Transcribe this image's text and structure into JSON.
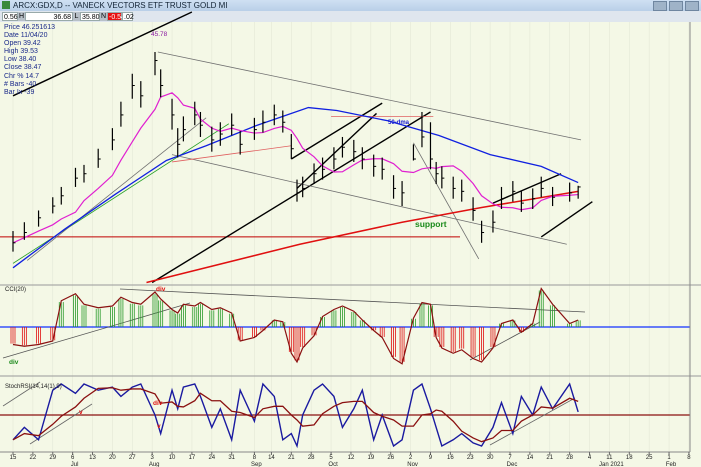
{
  "window": {
    "title": "ARCX:GDX,D -- VANECK VECTORS ETF TRUST GOLD MI"
  },
  "toolbar": {
    "open_partial": "0.56",
    "h_label": "H",
    "high": "36.68",
    "l_label": "L",
    "low": "35.80",
    "n_label": "N",
    "net": "-0.54",
    "pct_partial": ".02",
    "net_color": "#e81010"
  },
  "info": {
    "price": "Price  46.251613",
    "date": "Date   11/04/20",
    "open": "Open   39.42",
    "high": "High   39.53",
    "low": "Low    38.40",
    "close": "Close  38.47",
    "chg": "Chr %  14.7",
    "bars": "# Bars -40",
    "barix": "Bar Ix  -39"
  },
  "colors": {
    "background": "#f4f8e6",
    "bars": "#000000",
    "ma20": "#e020d0",
    "ma50": "#1020e0",
    "ma200": "#e01010",
    "support": "#c00000",
    "cci_pos": "#2a9a2a",
    "cci_neg": "#e01010",
    "cci_line": "#8a1010",
    "stoch_k": "#1a1aa0",
    "stoch_d": "#8a1010",
    "zero_line": "#1030ff"
  },
  "annotations": {
    "peak_label": "45.78",
    "ma50_label": "50-dma",
    "support_label": "support",
    "cci_div_red": "div",
    "cci_div_green": "div",
    "stoch_div": "div",
    "stoch_v1": "v",
    "stoch_v2": "v"
  },
  "chart_data": [
    {
      "type": "ohlc",
      "panel": "price",
      "columns": [
        "date",
        "high",
        "low",
        "close"
      ],
      "bars": [
        [
          "2020-06-15",
          33.6,
          32.2,
          32.8
        ],
        [
          "2020-06-19",
          34.2,
          33.0,
          33.5
        ],
        [
          "2020-06-24",
          35.0,
          33.9,
          34.5
        ],
        [
          "2020-06-29",
          35.9,
          34.8,
          35.3
        ],
        [
          "2020-07-02",
          36.6,
          35.4,
          36.0
        ],
        [
          "2020-07-07",
          37.9,
          36.6,
          37.2
        ],
        [
          "2020-07-10",
          38.1,
          36.9,
          37.5
        ],
        [
          "2020-07-15",
          39.2,
          37.9,
          38.5
        ],
        [
          "2020-07-20",
          40.6,
          39.1,
          39.8
        ],
        [
          "2020-07-23",
          42.4,
          40.7,
          41.5
        ],
        [
          "2020-07-27",
          44.3,
          42.6,
          43.5
        ],
        [
          "2020-07-30",
          43.8,
          42.0,
          42.8
        ],
        [
          "2020-08-04",
          45.78,
          44.2,
          45.2
        ],
        [
          "2020-08-06",
          44.6,
          42.7,
          43.5
        ],
        [
          "2020-08-10",
          42.6,
          40.5,
          41.5
        ],
        [
          "2020-08-12",
          40.6,
          38.6,
          39.5
        ],
        [
          "2020-08-14",
          41.4,
          39.7,
          40.5
        ],
        [
          "2020-08-18",
          42.4,
          40.8,
          41.5
        ],
        [
          "2020-08-20",
          41.7,
          40.0,
          40.8
        ],
        [
          "2020-08-24",
          40.7,
          39.0,
          39.8
        ],
        [
          "2020-08-27",
          41.0,
          39.4,
          40.2
        ],
        [
          "2020-08-31",
          41.6,
          40.1,
          40.8
        ],
        [
          "2020-09-03",
          40.4,
          38.8,
          39.5
        ],
        [
          "2020-09-08",
          41.3,
          39.8,
          40.5
        ],
        [
          "2020-09-11",
          41.8,
          40.3,
          41.0
        ],
        [
          "2020-09-15",
          42.2,
          40.8,
          41.5
        ],
        [
          "2020-09-18",
          41.8,
          40.3,
          41.0
        ],
        [
          "2020-09-21",
          40.2,
          38.5,
          39.2
        ],
        [
          "2020-09-23",
          37.1,
          35.6,
          36.2
        ],
        [
          "2020-09-25",
          37.3,
          35.9,
          36.5
        ],
        [
          "2020-09-29",
          38.2,
          36.8,
          37.5
        ],
        [
          "2020-10-02",
          38.6,
          37.1,
          37.8
        ],
        [
          "2020-10-06",
          39.3,
          37.8,
          38.5
        ],
        [
          "2020-10-09",
          40.0,
          38.6,
          39.3
        ],
        [
          "2020-10-13",
          39.8,
          38.3,
          39.0
        ],
        [
          "2020-10-16",
          39.3,
          37.8,
          38.5
        ],
        [
          "2020-10-20",
          38.8,
          37.3,
          38.0
        ],
        [
          "2020-10-23",
          38.6,
          37.1,
          37.8
        ],
        [
          "2020-10-27",
          37.4,
          35.8,
          36.5
        ],
        [
          "2020-10-30",
          37.0,
          35.3,
          36.2
        ],
        [
          "2020-11-03",
          39.5,
          38.4,
          38.5
        ],
        [
          "2020-11-06",
          41.7,
          39.3,
          40.0
        ],
        [
          "2020-11-09",
          41.0,
          37.8,
          38.5
        ],
        [
          "2020-11-11",
          38.3,
          36.8,
          37.5
        ],
        [
          "2020-11-13",
          38.0,
          36.5,
          37.2
        ],
        [
          "2020-11-17",
          37.3,
          35.8,
          36.5
        ],
        [
          "2020-11-20",
          37.1,
          35.6,
          36.3
        ],
        [
          "2020-11-24",
          35.9,
          34.3,
          35.0
        ],
        [
          "2020-11-27",
          34.3,
          32.8,
          33.5
        ],
        [
          "2020-12-01",
          35.0,
          33.5,
          34.2
        ],
        [
          "2020-12-04",
          36.6,
          35.1,
          35.8
        ],
        [
          "2020-12-08",
          37.0,
          35.6,
          36.3
        ],
        [
          "2020-12-11",
          36.3,
          34.9,
          35.5
        ],
        [
          "2020-12-15",
          36.5,
          35.1,
          35.8
        ],
        [
          "2020-12-18",
          37.3,
          35.9,
          36.5
        ],
        [
          "2020-12-22",
          36.6,
          35.3,
          35.9
        ],
        [
          "2020-12-28",
          36.9,
          35.6,
          36.2
        ],
        [
          "2020-12-31",
          36.68,
          35.8,
          36.6
        ]
      ],
      "ma50": [
        [
          "2020-06-15",
          31.1
        ],
        [
          "2020-07-03",
          33.7
        ],
        [
          "2020-07-21",
          36.1
        ],
        [
          "2020-08-08",
          38.4
        ],
        [
          "2020-08-22",
          39.4
        ],
        [
          "2020-09-09",
          40.8
        ],
        [
          "2020-09-27",
          42.0
        ],
        [
          "2020-10-07",
          41.8
        ],
        [
          "2020-10-25",
          41.1
        ],
        [
          "2020-11-12",
          40.1
        ],
        [
          "2020-11-30",
          38.8
        ],
        [
          "2020-12-18",
          38.0
        ],
        [
          "2020-12-31",
          36.9
        ]
      ],
      "ma200": [
        [
          "2020-08-01",
          30.1
        ],
        [
          "2020-09-24",
          32.7
        ],
        [
          "2020-10-30",
          34.2
        ],
        [
          "2020-11-27",
          35.2
        ],
        [
          "2020-12-31",
          36.3
        ]
      ],
      "support": 33.2,
      "trendlines": [
        {
          "color": "#000000",
          "from": [
            "2020-06-15",
            42.8
          ],
          "to": [
            "2020-08-17",
            48.5
          ]
        },
        {
          "color": "#000000",
          "from": [
            "2020-08-03",
            30.1
          ],
          "to": [
            "2020-11-09",
            41.7
          ]
        },
        {
          "color": "#000000",
          "from": [
            "2020-09-23",
            36.5
          ],
          "to": [
            "2020-10-21",
            41.6
          ]
        },
        {
          "color": "#000000",
          "from": [
            "2020-09-21",
            38.5
          ],
          "to": [
            "2020-10-23",
            42.3
          ]
        },
        {
          "color": "#000000",
          "from": [
            "2020-12-01",
            35.5
          ],
          "to": [
            "2020-12-25",
            37.5
          ]
        },
        {
          "color": "#000000",
          "from": [
            "2020-12-18",
            33.2
          ],
          "to": [
            "2021-01-05",
            35.6
          ]
        },
        {
          "color": "#707070",
          "from": [
            "2020-08-05",
            45.78
          ],
          "to": [
            "2021-01-01",
            39.8
          ]
        },
        {
          "color": "#707070",
          "from": [
            "2020-08-10",
            38.8
          ],
          "to": [
            "2020-12-27",
            32.7
          ]
        },
        {
          "color": "#707070",
          "from": [
            "2020-11-26",
            31.7
          ],
          "to": [
            "2020-11-03",
            39.6
          ]
        },
        {
          "color": "#2aa02a",
          "from": [
            "2020-06-15",
            31.4
          ],
          "to": [
            "2020-08-30",
            40.9
          ]
        },
        {
          "color": "#707070",
          "from": [
            "2020-06-20",
            31.6
          ],
          "to": [
            "2020-08-22",
            41.3
          ]
        },
        {
          "color": "#e06060",
          "from": [
            "2020-08-10",
            38.3
          ],
          "to": [
            "2020-09-21",
            39.4
          ]
        },
        {
          "color": "#e06060",
          "from": [
            "2020-10-05",
            41.4
          ],
          "to": [
            "2020-11-10",
            41.4
          ]
        }
      ]
    },
    {
      "type": "bar-line",
      "panel": "cci",
      "title": "CCI(20)",
      "zero": 0,
      "values": [
        -100,
        -110,
        -100,
        -80,
        150,
        190,
        130,
        110,
        120,
        170,
        140,
        130,
        200,
        160,
        100,
        80,
        130,
        120,
        140,
        100,
        110,
        80,
        -80,
        -60,
        -20,
        40,
        30,
        -150,
        -200,
        -120,
        -50,
        60,
        100,
        120,
        90,
        40,
        -20,
        -60,
        -180,
        -210,
        50,
        140,
        130,
        -60,
        -120,
        -150,
        -130,
        -180,
        -200,
        -120,
        20,
        40,
        -30,
        20,
        220,
        130,
        20,
        40
      ]
    },
    {
      "type": "line",
      "panel": "stochrsi",
      "title": "StochRSI(14,14(1),9)",
      "level": 0.5,
      "k": [
        0.1,
        0.3,
        0.1,
        0.9,
        1,
        0.85,
        1,
        0.9,
        0.95,
        0.8,
        0.95,
        1,
        0.5,
        0.2,
        0.9,
        0.6,
        0.95,
        1,
        0.8,
        0.3,
        0.6,
        0.1,
        0.9,
        0.4,
        1,
        0.8,
        0.1,
        0.2,
        0.0,
        0.5,
        0.9,
        1,
        0.8,
        0.3,
        0.6,
        0.9,
        0.1,
        0.5,
        0.0,
        0.1,
        0.9,
        1,
        0.6,
        0.3,
        0.0,
        0.1,
        0.2,
        0.05,
        0.0,
        0.3,
        0.7,
        0.2,
        0.8,
        0.5,
        0.95,
        0.6,
        1,
        0.55
      ]
    }
  ],
  "x_axis": {
    "ticks": [
      [
        "2020-06-15",
        "15"
      ],
      [
        "2020-06-22",
        "22"
      ],
      [
        "2020-06-29",
        "29"
      ],
      [
        "2020-07-06",
        "6"
      ],
      [
        "2020-07-13",
        "13"
      ],
      [
        "2020-07-20",
        "20"
      ],
      [
        "2020-07-27",
        "27"
      ],
      [
        "2020-08-03",
        "3"
      ],
      [
        "2020-08-10",
        "10"
      ],
      [
        "2020-08-17",
        "17"
      ],
      [
        "2020-08-24",
        "24"
      ],
      [
        "2020-08-31",
        "31"
      ],
      [
        "2020-09-08",
        "8"
      ],
      [
        "2020-09-14",
        "14"
      ],
      [
        "2020-09-21",
        "21"
      ],
      [
        "2020-09-28",
        "28"
      ],
      [
        "2020-10-05",
        "5"
      ],
      [
        "2020-10-12",
        "12"
      ],
      [
        "2020-10-19",
        "19"
      ],
      [
        "2020-10-26",
        "26"
      ],
      [
        "2020-11-02",
        "2"
      ],
      [
        "2020-11-09",
        "9"
      ],
      [
        "2020-11-16",
        "16"
      ],
      [
        "2020-11-23",
        "23"
      ],
      [
        "2020-11-30",
        "30"
      ],
      [
        "2020-12-07",
        "7"
      ],
      [
        "2020-12-14",
        "14"
      ],
      [
        "2020-12-21",
        "21"
      ],
      [
        "2020-12-28",
        "28"
      ],
      [
        "2021-01-04",
        "4"
      ],
      [
        "2021-01-11",
        "11"
      ],
      [
        "2021-01-18",
        "18"
      ],
      [
        "2021-01-25",
        "25"
      ],
      [
        "2021-02-01",
        "1"
      ],
      [
        "2021-02-08",
        "8"
      ]
    ],
    "months": [
      [
        "2020-07-06",
        "Jul"
      ],
      [
        "2020-08-03",
        "Aug"
      ],
      [
        "2020-09-08",
        "Sep"
      ],
      [
        "2020-10-05",
        "Oct"
      ],
      [
        "2020-11-02",
        "Nov"
      ],
      [
        "2020-12-07",
        "Dec"
      ],
      [
        "2021-01-11",
        "Jan 2021"
      ],
      [
        "2021-02-01",
        "Feb"
      ]
    ]
  }
}
